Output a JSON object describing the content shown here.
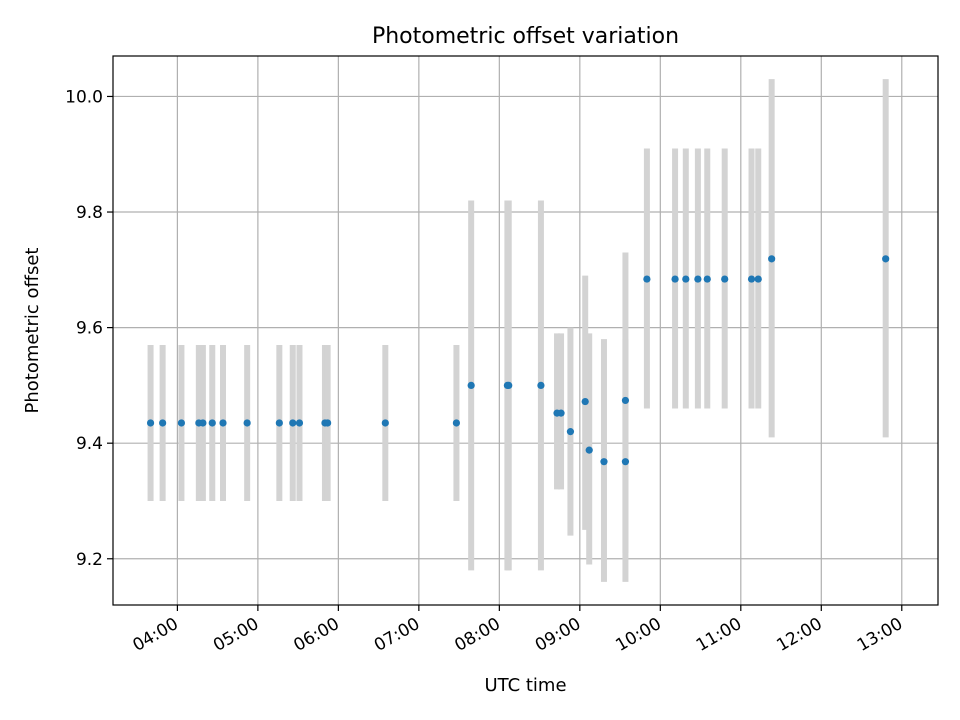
{
  "colors": {
    "point": "#1f77b4",
    "errorbar": "#d3d3d3",
    "grid": "#b0b0b0",
    "axes": "#000000"
  },
  "chart_data": {
    "type": "scatter",
    "title": "Photometric offset variation",
    "xlabel": "UTC time",
    "ylabel": "Photometric offset",
    "grid": true,
    "x_is_time": true,
    "xlim": [
      "03:12",
      "13:27"
    ],
    "ylim": [
      9.12,
      10.07
    ],
    "xticks": [
      "04:00",
      "05:00",
      "06:00",
      "07:00",
      "08:00",
      "09:00",
      "10:00",
      "11:00",
      "12:00",
      "13:00"
    ],
    "yticks": [
      {
        "value": 9.2,
        "label": "9.2"
      },
      {
        "value": 9.4,
        "label": "9.4"
      },
      {
        "value": 9.6,
        "label": "9.6"
      },
      {
        "value": 9.8,
        "label": "9.8"
      },
      {
        "value": 10.0,
        "label": "10.0"
      }
    ],
    "points": [
      {
        "t": "03:40",
        "y": 9.435,
        "lo": 9.3,
        "hi": 9.57
      },
      {
        "t": "03:49",
        "y": 9.435,
        "lo": 9.3,
        "hi": 9.57
      },
      {
        "t": "04:03",
        "y": 9.435,
        "lo": 9.3,
        "hi": 9.57
      },
      {
        "t": "04:16",
        "y": 9.435,
        "lo": 9.3,
        "hi": 9.57
      },
      {
        "t": "04:19",
        "y": 9.435,
        "lo": 9.3,
        "hi": 9.57
      },
      {
        "t": "04:26",
        "y": 9.435,
        "lo": 9.3,
        "hi": 9.57
      },
      {
        "t": "04:34",
        "y": 9.435,
        "lo": 9.3,
        "hi": 9.57
      },
      {
        "t": "04:52",
        "y": 9.435,
        "lo": 9.3,
        "hi": 9.57
      },
      {
        "t": "05:16",
        "y": 9.435,
        "lo": 9.3,
        "hi": 9.57
      },
      {
        "t": "05:26",
        "y": 9.435,
        "lo": 9.3,
        "hi": 9.57
      },
      {
        "t": "05:31",
        "y": 9.435,
        "lo": 9.3,
        "hi": 9.57
      },
      {
        "t": "05:50",
        "y": 9.435,
        "lo": 9.3,
        "hi": 9.57
      },
      {
        "t": "05:52",
        "y": 9.435,
        "lo": 9.3,
        "hi": 9.57
      },
      {
        "t": "06:35",
        "y": 9.435,
        "lo": 9.3,
        "hi": 9.57
      },
      {
        "t": "07:28",
        "y": 9.435,
        "lo": 9.3,
        "hi": 9.57
      },
      {
        "t": "07:39",
        "y": 9.5,
        "lo": 9.18,
        "hi": 9.82
      },
      {
        "t": "08:06",
        "y": 9.5,
        "lo": 9.18,
        "hi": 9.82
      },
      {
        "t": "08:07",
        "y": 9.5,
        "lo": 9.18,
        "hi": 9.82
      },
      {
        "t": "08:31",
        "y": 9.5,
        "lo": 9.18,
        "hi": 9.82
      },
      {
        "t": "08:43",
        "y": 9.452,
        "lo": 9.32,
        "hi": 9.59
      },
      {
        "t": "08:46",
        "y": 9.452,
        "lo": 9.32,
        "hi": 9.59
      },
      {
        "t": "08:53",
        "y": 9.42,
        "lo": 9.24,
        "hi": 9.6
      },
      {
        "t": "09:04",
        "y": 9.472,
        "lo": 9.25,
        "hi": 9.69
      },
      {
        "t": "09:07",
        "y": 9.388,
        "lo": 9.19,
        "hi": 9.59
      },
      {
        "t": "09:18",
        "y": 9.368,
        "lo": 9.16,
        "hi": 9.58
      },
      {
        "t": "09:34",
        "y": 9.368,
        "lo": 9.16,
        "hi": 9.58
      },
      {
        "t": "09:34",
        "y": 9.474,
        "lo": 9.21,
        "hi": 9.73
      },
      {
        "t": "09:50",
        "y": 9.684,
        "lo": 9.46,
        "hi": 9.91
      },
      {
        "t": "10:11",
        "y": 9.684,
        "lo": 9.46,
        "hi": 9.91
      },
      {
        "t": "10:19",
        "y": 9.684,
        "lo": 9.46,
        "hi": 9.91
      },
      {
        "t": "10:28",
        "y": 9.684,
        "lo": 9.46,
        "hi": 9.91
      },
      {
        "t": "10:35",
        "y": 9.684,
        "lo": 9.46,
        "hi": 9.91
      },
      {
        "t": "10:48",
        "y": 9.684,
        "lo": 9.46,
        "hi": 9.91
      },
      {
        "t": "11:08",
        "y": 9.684,
        "lo": 9.46,
        "hi": 9.91
      },
      {
        "t": "11:13",
        "y": 9.684,
        "lo": 9.46,
        "hi": 9.91
      },
      {
        "t": "11:23",
        "y": 9.719,
        "lo": 9.41,
        "hi": 10.03
      },
      {
        "t": "12:48",
        "y": 9.719,
        "lo": 9.41,
        "hi": 10.03
      }
    ]
  }
}
